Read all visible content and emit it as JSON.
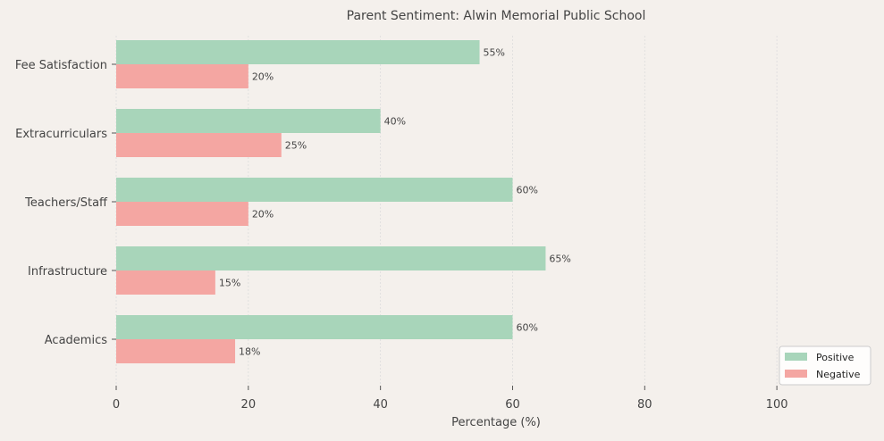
{
  "chart_data": {
    "type": "bar",
    "orientation": "horizontal",
    "title": "Parent Sentiment: Alwin Memorial Public School",
    "xlabel": "Percentage (%)",
    "ylabel": "",
    "categories": [
      "Fee Satisfaction",
      "Extracurriculars",
      "Teachers/Staff",
      "Infrastructure",
      "Academics"
    ],
    "series": [
      {
        "name": "Positive",
        "color": "#a8d5ba",
        "values": [
          55,
          40,
          60,
          65,
          60
        ],
        "labels": [
          "55%",
          "40%",
          "60%",
          "65%",
          "60%"
        ]
      },
      {
        "name": "Negative",
        "color": "#f4a6a2",
        "values": [
          20,
          25,
          20,
          15,
          18
        ],
        "labels": [
          "20%",
          "25%",
          "20%",
          "15%",
          "18%"
        ]
      }
    ],
    "xlim": [
      0,
      115
    ],
    "xticks": [
      0,
      20,
      40,
      60,
      80,
      100
    ],
    "xtick_labels": [
      "0",
      "20",
      "40",
      "60",
      "80",
      "100"
    ],
    "grid": true,
    "legend_position": "bottom-right"
  }
}
